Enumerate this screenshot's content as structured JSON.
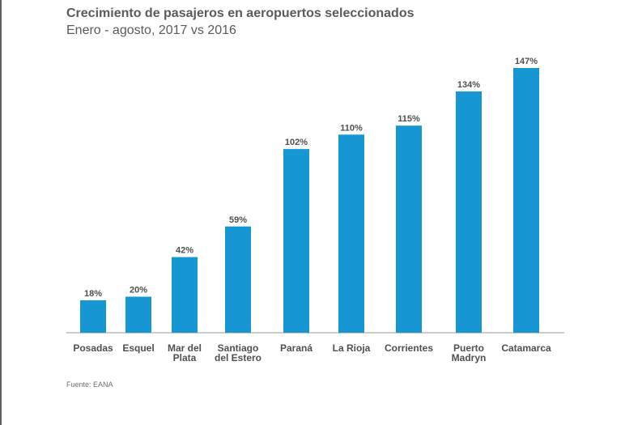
{
  "title": "Crecimiento de pasajeros en aeropuertos seleccionados",
  "subtitle": "Enero - agosto, 2017 vs 2016",
  "source": "Fuente: EANA",
  "colors": {
    "bar": "#1696d3",
    "axis": "#b9b9b9",
    "text": "#4f4f4f"
  },
  "chart_data": {
    "type": "bar",
    "title": "Crecimiento de pasajeros en aeropuertos seleccionados",
    "subtitle": "Enero - agosto, 2017 vs 2016",
    "categories": [
      [
        "Posadas"
      ],
      [
        "Esquel"
      ],
      [
        "Mar del",
        "Plata"
      ],
      [
        "Santiago",
        "del Estero"
      ],
      [
        "Paraná"
      ],
      [
        "La Rioja"
      ],
      [
        "Corrientes"
      ],
      [
        "Puerto",
        "Madryn"
      ],
      [
        "Catamarca"
      ]
    ],
    "values": [
      18,
      20,
      42,
      59,
      102,
      110,
      115,
      134,
      147
    ],
    "value_labels": [
      "18%",
      "20%",
      "42%",
      "59%",
      "102%",
      "110%",
      "115%",
      "134%",
      "147%"
    ],
    "ylim": [
      0,
      147
    ],
    "grid": false,
    "legend": "none"
  }
}
